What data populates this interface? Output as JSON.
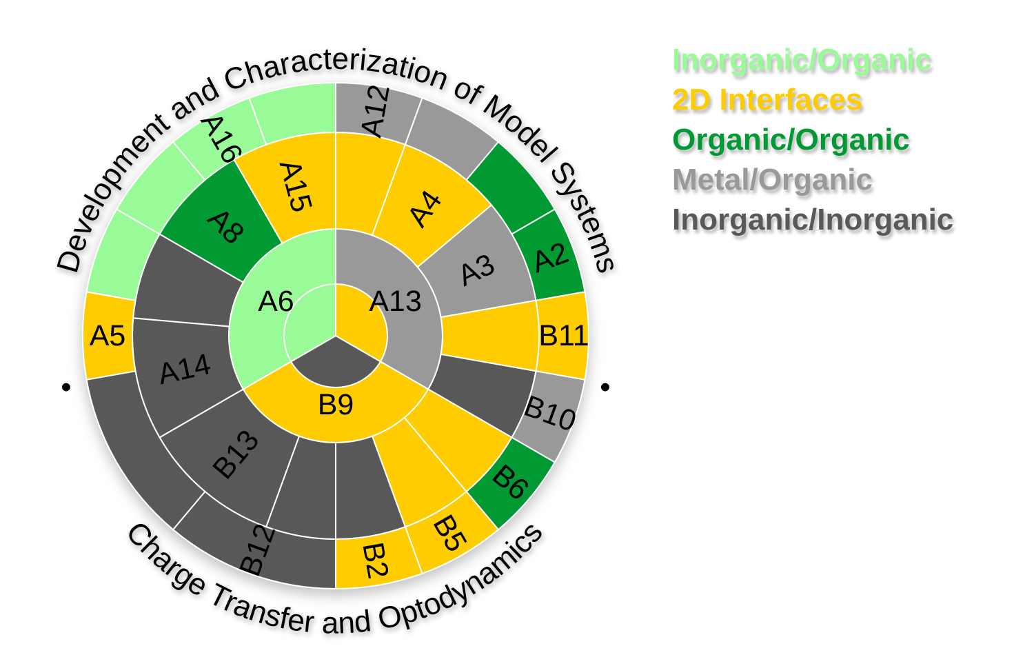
{
  "colors": {
    "inorganic_organic": "#98fb98",
    "two_d": "#ffcc00",
    "organic_organic": "#009933",
    "metal_organic": "#999999",
    "inorganic_inorganic": "#595959",
    "separator": "#ffffff"
  },
  "legend": [
    {
      "label": "Inorganic/Organic",
      "color": "#98fb98"
    },
    {
      "label": "2D Interfaces",
      "color": "#ffcc00"
    },
    {
      "label": "Organic/Organic",
      "color": "#009933"
    },
    {
      "label": "Metal/Organic",
      "color": "#999999"
    },
    {
      "label": "Inorganic/Inorganic",
      "color": "#595959"
    }
  ],
  "arc_titles": {
    "top": "Development and Characterization of Model Systems",
    "bottom": "Charge Transfer and Optodynamics"
  },
  "bullet": "•",
  "rings": {
    "inner": [
      {
        "label": "A13",
        "start": 0,
        "end": 120,
        "colors": [
          "#ffcc00",
          "#999999"
        ]
      },
      {
        "label": "B9",
        "start": 120,
        "end": 240,
        "colors": [
          "#595959",
          "#ffcc00"
        ]
      },
      {
        "label": "A6",
        "start": 240,
        "end": 360,
        "colors": [
          "#98fb98",
          "#98fb98"
        ]
      }
    ],
    "middle": [
      {
        "label": "",
        "start": 0,
        "end": 20,
        "colors": [
          "#ffcc00"
        ]
      },
      {
        "label": "A4",
        "start": 20,
        "end": 50,
        "colors": [
          "#ffcc00"
        ]
      },
      {
        "label": "A3",
        "start": 50,
        "end": 80,
        "colors": [
          "#999999"
        ]
      },
      {
        "label": "",
        "start": 80,
        "end": 100,
        "colors": [
          "#ffcc00"
        ]
      },
      {
        "label": "",
        "start": 100,
        "end": 120,
        "colors": [
          "#595959"
        ]
      },
      {
        "label": "",
        "start": 120,
        "end": 140,
        "colors": [
          "#ffcc00"
        ]
      },
      {
        "label": "",
        "start": 140,
        "end": 160,
        "colors": [
          "#ffcc00"
        ]
      },
      {
        "label": "",
        "start": 160,
        "end": 180,
        "colors": [
          "#595959"
        ]
      },
      {
        "label": "",
        "start": 180,
        "end": 200,
        "colors": [
          "#595959"
        ]
      },
      {
        "label": "B13",
        "start": 200,
        "end": 240,
        "colors": [
          "#595959"
        ]
      },
      {
        "label": "A14",
        "start": 240,
        "end": 275,
        "colors": [
          "#595959"
        ]
      },
      {
        "label": "",
        "start": 275,
        "end": 300,
        "colors": [
          "#595959"
        ]
      },
      {
        "label": "A8",
        "start": 300,
        "end": 330,
        "colors": [
          "#009933"
        ]
      },
      {
        "label": "A15",
        "start": 330,
        "end": 360,
        "colors": [
          "#ffcc00"
        ]
      }
    ],
    "outer": [
      {
        "label": "A12",
        "start": 0,
        "end": 20,
        "colors": [
          "#999999"
        ]
      },
      {
        "label": "",
        "start": 20,
        "end": 40,
        "colors": [
          "#999999"
        ]
      },
      {
        "label": "",
        "start": 40,
        "end": 60,
        "colors": [
          "#009933"
        ]
      },
      {
        "label": "A2",
        "start": 60,
        "end": 80,
        "colors": [
          "#009933"
        ]
      },
      {
        "label": "B11",
        "start": 80,
        "end": 100,
        "colors": [
          "#ffcc00"
        ]
      },
      {
        "label": "B10",
        "start": 100,
        "end": 120,
        "colors": [
          "#999999"
        ]
      },
      {
        "label": "B6",
        "start": 120,
        "end": 140,
        "colors": [
          "#009933"
        ]
      },
      {
        "label": "B5",
        "start": 140,
        "end": 160,
        "colors": [
          "#ffcc00"
        ]
      },
      {
        "label": "B2",
        "start": 160,
        "end": 180,
        "colors": [
          "#ffcc00"
        ]
      },
      {
        "label": "B12",
        "start": 180,
        "end": 220,
        "colors": [
          "#595959"
        ]
      },
      {
        "label": "",
        "start": 220,
        "end": 260,
        "colors": [
          "#595959"
        ]
      },
      {
        "label": "A5",
        "start": 260,
        "end": 280,
        "colors": [
          "#ffcc00"
        ]
      },
      {
        "label": "",
        "start": 280,
        "end": 300,
        "colors": [
          "#98fb98"
        ]
      },
      {
        "label": "",
        "start": 300,
        "end": 320,
        "colors": [
          "#98fb98"
        ]
      },
      {
        "label": "A16",
        "start": 320,
        "end": 340,
        "colors": [
          "#98fb98"
        ]
      },
      {
        "label": "",
        "start": 340,
        "end": 360,
        "colors": [
          "#98fb98"
        ]
      }
    ]
  }
}
